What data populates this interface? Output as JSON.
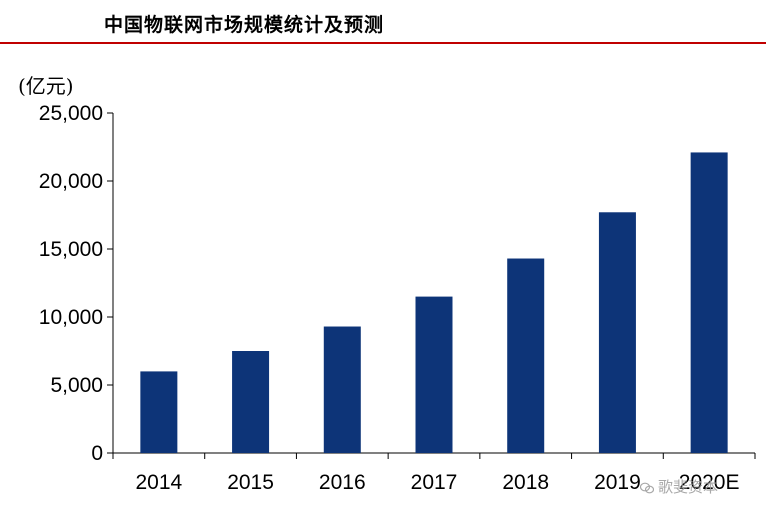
{
  "header": {
    "title": "中国物联网市场规模统计及预测"
  },
  "chart_data": {
    "type": "bar",
    "unit_label": "(亿元)",
    "categories": [
      "2014",
      "2015",
      "2016",
      "2017",
      "2018",
      "2019",
      "2020E"
    ],
    "values": [
      6000,
      7500,
      9300,
      11500,
      14300,
      17700,
      22100
    ],
    "ylim": [
      0,
      25000
    ],
    "yticks": [
      0,
      5000,
      10000,
      15000,
      20000,
      25000
    ],
    "ytick_labels": [
      "0",
      "5,000",
      "10,000",
      "15,000",
      "20,000",
      "25,000"
    ],
    "grid": false,
    "legend": "none",
    "bar_color": "#0d3478"
  },
  "watermark": {
    "text": "歌斐资本"
  },
  "colors": {
    "accent_rule": "#c00000",
    "bar": "#0d3478"
  }
}
